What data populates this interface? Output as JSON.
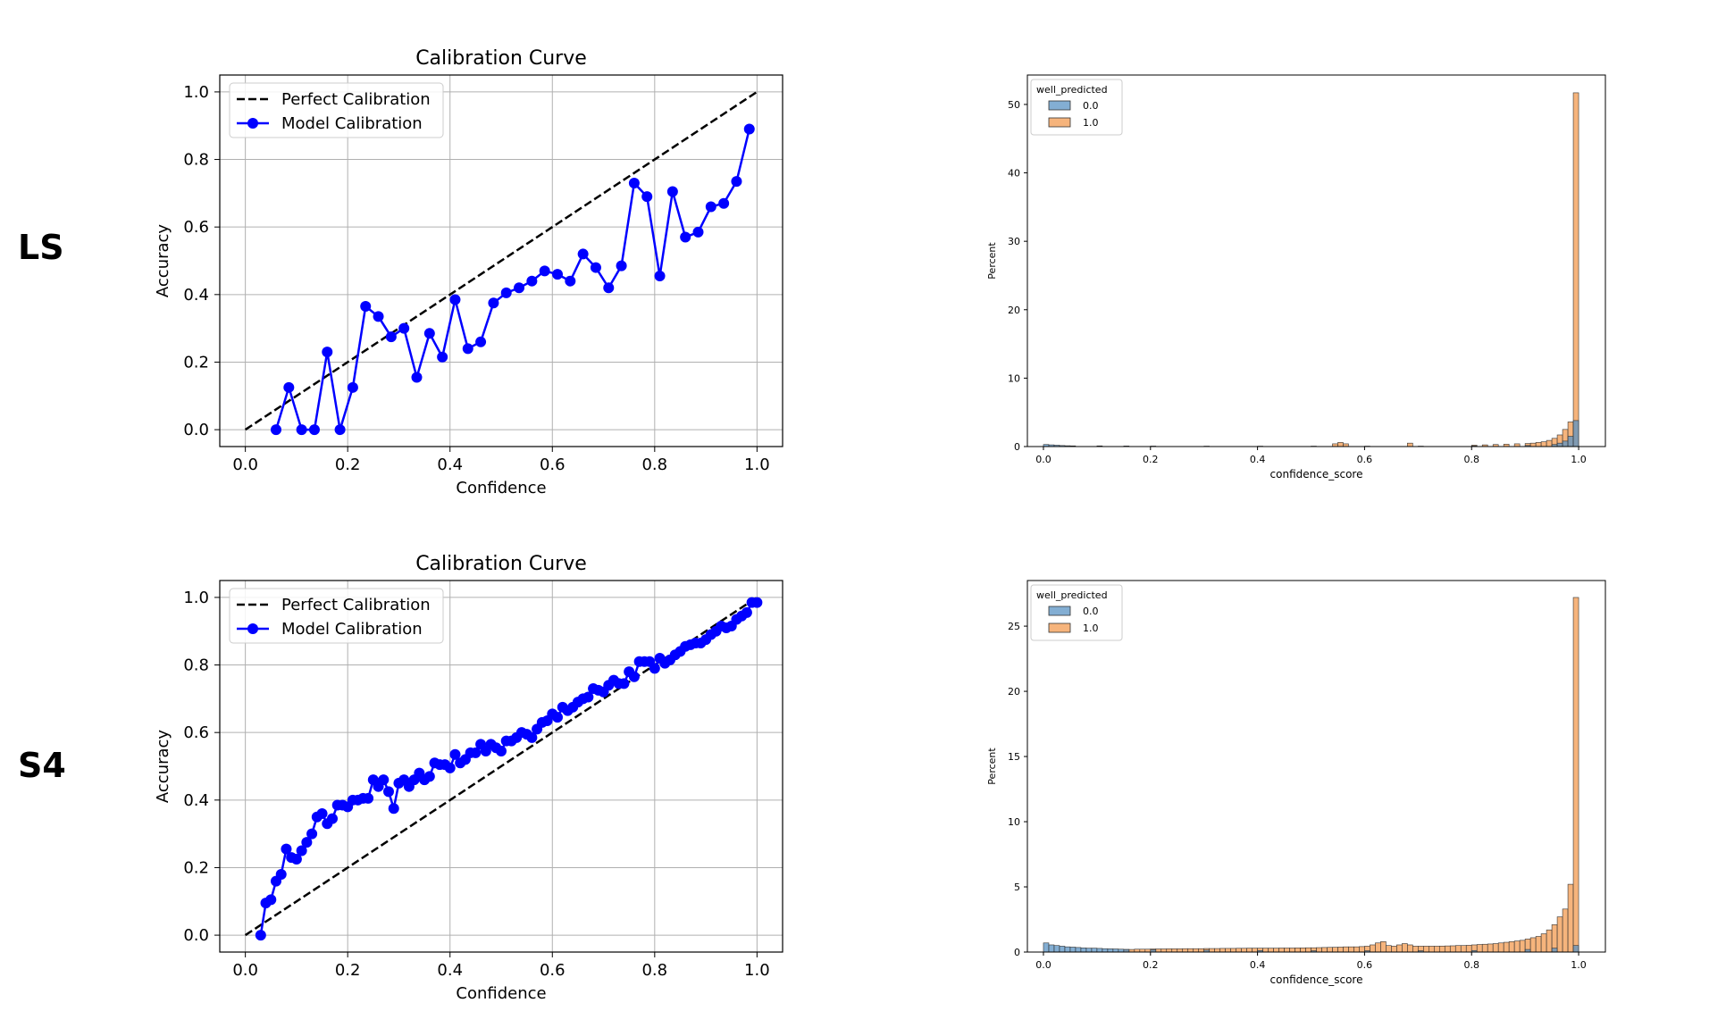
{
  "row_labels": [
    "LS",
    "S4"
  ],
  "chart_data": [
    {
      "id": "ls-calibration",
      "type": "line",
      "title": "Calibration Curve",
      "xlabel": "Confidence",
      "ylabel": "Accuracy",
      "xlim": [
        -0.05,
        1.05
      ],
      "ylim": [
        -0.05,
        1.05
      ],
      "xticks": [
        "0.0",
        "0.2",
        "0.4",
        "0.6",
        "0.8",
        "1.0"
      ],
      "yticks": [
        "0.0",
        "0.2",
        "0.4",
        "0.6",
        "0.8",
        "1.0"
      ],
      "grid": true,
      "legend_position": "top-left",
      "series": [
        {
          "name": "Perfect Calibration",
          "style": "dashed",
          "color": "#000000",
          "x": [
            0,
            1
          ],
          "y": [
            0,
            1
          ]
        },
        {
          "name": "Model Calibration",
          "style": "solid-marker",
          "color": "#0000ff",
          "x": [
            0.06,
            0.085,
            0.11,
            0.135,
            0.16,
            0.185,
            0.21,
            0.235,
            0.26,
            0.285,
            0.31,
            0.335,
            0.36,
            0.385,
            0.41,
            0.435,
            0.46,
            0.485,
            0.51,
            0.535,
            0.56,
            0.585,
            0.61,
            0.635,
            0.66,
            0.685,
            0.71,
            0.735,
            0.76,
            0.785,
            0.81,
            0.835,
            0.86,
            0.885,
            0.91,
            0.935,
            0.96,
            0.985
          ],
          "y": [
            0.0,
            0.125,
            0.0,
            0.0,
            0.23,
            0.0,
            0.125,
            0.365,
            0.335,
            0.275,
            0.3,
            0.155,
            0.285,
            0.215,
            0.385,
            0.24,
            0.26,
            0.375,
            0.405,
            0.42,
            0.44,
            0.47,
            0.46,
            0.44,
            0.52,
            0.48,
            0.42,
            0.485,
            0.73,
            0.69,
            0.455,
            0.705,
            0.57,
            0.585,
            0.66,
            0.67,
            0.735,
            0.89
          ]
        }
      ]
    },
    {
      "id": "ls-histogram",
      "type": "bar",
      "title": "",
      "xlabel": "confidence_score",
      "ylabel": "Percent",
      "xlim": [
        -0.03,
        1.05
      ],
      "ylim": [
        0,
        54.3
      ],
      "xticks": [
        "0.0",
        "0.2",
        "0.4",
        "0.6",
        "0.8",
        "1.0"
      ],
      "yticks": [
        "0",
        "10",
        "20",
        "30",
        "40",
        "50"
      ],
      "legend_title": "well_predicted",
      "legend_position": "top-left",
      "series": [
        {
          "name": "0.0",
          "color": "#5a93c4",
          "x": [
            0.0,
            0.01,
            0.02,
            0.03,
            0.04,
            0.05,
            0.1,
            0.15,
            0.2,
            0.3,
            0.4,
            0.5,
            0.6,
            0.7,
            0.8,
            0.9,
            0.95,
            0.96,
            0.97,
            0.98,
            0.99
          ],
          "values": [
            0.3,
            0.25,
            0.2,
            0.15,
            0.12,
            0.1,
            0.1,
            0.08,
            0.07,
            0.06,
            0.06,
            0.06,
            0.06,
            0.06,
            0.08,
            0.15,
            0.3,
            0.5,
            0.8,
            1.5,
            3.8
          ]
        },
        {
          "name": "1.0",
          "color": "#f5a765",
          "x": [
            0.54,
            0.55,
            0.56,
            0.68,
            0.8,
            0.82,
            0.84,
            0.86,
            0.88,
            0.9,
            0.91,
            0.92,
            0.93,
            0.94,
            0.95,
            0.96,
            0.97,
            0.98,
            0.99
          ],
          "values": [
            0.4,
            0.6,
            0.4,
            0.5,
            0.2,
            0.25,
            0.3,
            0.35,
            0.4,
            0.45,
            0.5,
            0.6,
            0.7,
            0.9,
            1.2,
            1.7,
            2.5,
            3.6,
            51.7
          ]
        }
      ]
    },
    {
      "id": "s4-calibration",
      "type": "line",
      "title": "Calibration Curve",
      "xlabel": "Confidence",
      "ylabel": "Accuracy",
      "xlim": [
        -0.05,
        1.05
      ],
      "ylim": [
        -0.05,
        1.05
      ],
      "xticks": [
        "0.0",
        "0.2",
        "0.4",
        "0.6",
        "0.8",
        "1.0"
      ],
      "yticks": [
        "0.0",
        "0.2",
        "0.4",
        "0.6",
        "0.8",
        "1.0"
      ],
      "grid": true,
      "legend_position": "top-left",
      "series": [
        {
          "name": "Perfect Calibration",
          "style": "dashed",
          "color": "#000000",
          "x": [
            0,
            1
          ],
          "y": [
            0,
            1
          ]
        },
        {
          "name": "Model Calibration",
          "style": "solid-marker",
          "color": "#0000ff",
          "x": [
            0.03,
            0.04,
            0.05,
            0.06,
            0.07,
            0.08,
            0.09,
            0.1,
            0.11,
            0.12,
            0.13,
            0.14,
            0.15,
            0.16,
            0.17,
            0.18,
            0.19,
            0.2,
            0.21,
            0.22,
            0.23,
            0.24,
            0.25,
            0.26,
            0.27,
            0.28,
            0.29,
            0.3,
            0.31,
            0.32,
            0.33,
            0.34,
            0.35,
            0.36,
            0.37,
            0.38,
            0.39,
            0.4,
            0.41,
            0.42,
            0.43,
            0.44,
            0.45,
            0.46,
            0.47,
            0.48,
            0.49,
            0.5,
            0.51,
            0.52,
            0.53,
            0.54,
            0.55,
            0.56,
            0.57,
            0.58,
            0.59,
            0.6,
            0.61,
            0.62,
            0.63,
            0.64,
            0.65,
            0.66,
            0.67,
            0.68,
            0.69,
            0.7,
            0.71,
            0.72,
            0.73,
            0.74,
            0.75,
            0.76,
            0.77,
            0.78,
            0.79,
            0.8,
            0.81,
            0.82,
            0.83,
            0.84,
            0.85,
            0.86,
            0.87,
            0.88,
            0.89,
            0.9,
            0.91,
            0.92,
            0.93,
            0.94,
            0.95,
            0.96,
            0.97,
            0.98,
            0.99,
            1.0
          ],
          "y": [
            0.0,
            0.095,
            0.105,
            0.16,
            0.18,
            0.255,
            0.23,
            0.225,
            0.25,
            0.275,
            0.3,
            0.35,
            0.36,
            0.33,
            0.345,
            0.385,
            0.385,
            0.38,
            0.4,
            0.4,
            0.405,
            0.405,
            0.46,
            0.44,
            0.46,
            0.425,
            0.375,
            0.45,
            0.46,
            0.44,
            0.46,
            0.48,
            0.46,
            0.47,
            0.51,
            0.505,
            0.505,
            0.495,
            0.535,
            0.51,
            0.52,
            0.54,
            0.54,
            0.565,
            0.545,
            0.565,
            0.555,
            0.545,
            0.575,
            0.575,
            0.585,
            0.6,
            0.595,
            0.585,
            0.61,
            0.63,
            0.635,
            0.655,
            0.645,
            0.675,
            0.665,
            0.675,
            0.69,
            0.7,
            0.705,
            0.73,
            0.725,
            0.72,
            0.74,
            0.755,
            0.745,
            0.745,
            0.78,
            0.765,
            0.81,
            0.81,
            0.81,
            0.79,
            0.82,
            0.805,
            0.815,
            0.83,
            0.84,
            0.855,
            0.86,
            0.865,
            0.865,
            0.875,
            0.89,
            0.9,
            0.915,
            0.91,
            0.915,
            0.935,
            0.945,
            0.955,
            0.985,
            0.985
          ]
        }
      ]
    },
    {
      "id": "s4-histogram",
      "type": "bar",
      "title": "",
      "xlabel": "confidence_score",
      "ylabel": "Percent",
      "xlim": [
        -0.03,
        1.05
      ],
      "ylim": [
        0,
        28.5
      ],
      "xticks": [
        "0.0",
        "0.2",
        "0.4",
        "0.6",
        "0.8",
        "1.0"
      ],
      "yticks": [
        "0",
        "5",
        "10",
        "15",
        "20",
        "25"
      ],
      "legend_title": "well_predicted",
      "legend_position": "top-left",
      "series": [
        {
          "name": "0.0",
          "color": "#5a93c4",
          "x": [
            0.0,
            0.01,
            0.02,
            0.03,
            0.04,
            0.05,
            0.06,
            0.07,
            0.08,
            0.09,
            0.1,
            0.11,
            0.12,
            0.13,
            0.14,
            0.15,
            0.2,
            0.3,
            0.4,
            0.5,
            0.6,
            0.7,
            0.8,
            0.9,
            0.95,
            0.99
          ],
          "values": [
            0.7,
            0.55,
            0.5,
            0.45,
            0.4,
            0.38,
            0.35,
            0.32,
            0.3,
            0.3,
            0.28,
            0.26,
            0.25,
            0.24,
            0.22,
            0.2,
            0.18,
            0.15,
            0.12,
            0.1,
            0.1,
            0.1,
            0.12,
            0.2,
            0.3,
            0.5
          ]
        },
        {
          "name": "1.0",
          "color": "#f5a765",
          "x": [
            0.15,
            0.16,
            0.17,
            0.18,
            0.19,
            0.2,
            0.21,
            0.22,
            0.23,
            0.24,
            0.25,
            0.26,
            0.27,
            0.28,
            0.29,
            0.3,
            0.31,
            0.32,
            0.33,
            0.34,
            0.35,
            0.36,
            0.37,
            0.38,
            0.39,
            0.4,
            0.41,
            0.42,
            0.43,
            0.44,
            0.45,
            0.46,
            0.47,
            0.48,
            0.49,
            0.5,
            0.51,
            0.52,
            0.53,
            0.54,
            0.55,
            0.56,
            0.57,
            0.58,
            0.59,
            0.6,
            0.61,
            0.62,
            0.63,
            0.64,
            0.65,
            0.66,
            0.67,
            0.68,
            0.69,
            0.7,
            0.71,
            0.72,
            0.73,
            0.74,
            0.75,
            0.76,
            0.77,
            0.78,
            0.79,
            0.8,
            0.81,
            0.82,
            0.83,
            0.84,
            0.85,
            0.86,
            0.87,
            0.88,
            0.89,
            0.9,
            0.91,
            0.92,
            0.93,
            0.94,
            0.95,
            0.96,
            0.97,
            0.98,
            0.99
          ],
          "values": [
            0.2,
            0.2,
            0.22,
            0.22,
            0.22,
            0.24,
            0.24,
            0.24,
            0.25,
            0.25,
            0.25,
            0.26,
            0.26,
            0.26,
            0.26,
            0.27,
            0.27,
            0.27,
            0.28,
            0.28,
            0.28,
            0.29,
            0.29,
            0.3,
            0.3,
            0.3,
            0.3,
            0.3,
            0.3,
            0.31,
            0.31,
            0.31,
            0.32,
            0.32,
            0.33,
            0.33,
            0.34,
            0.35,
            0.36,
            0.37,
            0.38,
            0.4,
            0.4,
            0.4,
            0.42,
            0.45,
            0.55,
            0.7,
            0.8,
            0.5,
            0.45,
            0.55,
            0.65,
            0.55,
            0.45,
            0.45,
            0.45,
            0.45,
            0.45,
            0.46,
            0.47,
            0.48,
            0.5,
            0.5,
            0.52,
            0.55,
            0.58,
            0.6,
            0.62,
            0.65,
            0.7,
            0.75,
            0.8,
            0.85,
            0.9,
            1.0,
            1.1,
            1.2,
            1.4,
            1.7,
            2.1,
            2.7,
            3.3,
            5.2,
            27.2
          ]
        }
      ]
    }
  ]
}
